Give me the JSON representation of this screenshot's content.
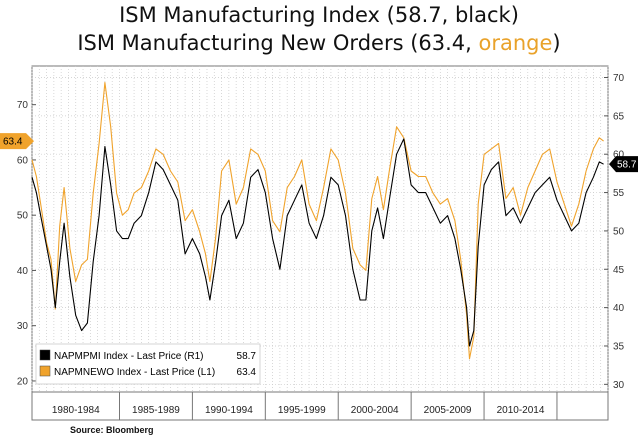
{
  "titles": {
    "line1": "ISM Manufacturing Index (58.7, black)",
    "line2_prefix": "ISM Manufacturing New Orders (63.4, ",
    "line2_highlight": "orange",
    "line2_suffix": ")"
  },
  "source": "Source:  Bloomberg",
  "chart_data": {
    "type": "line",
    "x_range": [
      1979.0,
      2018.5
    ],
    "left_axis": {
      "ylim": [
        18,
        77
      ],
      "ticks": [
        20,
        30,
        40,
        50,
        60,
        70
      ]
    },
    "right_axis": {
      "ylim": [
        29,
        71.5
      ],
      "ticks": [
        30,
        35,
        40,
        45,
        50,
        55,
        60,
        65,
        70
      ]
    },
    "x_categories": [
      "1980-1984",
      "1985-1989",
      "1990-1994",
      "1995-1999",
      "2000-2004",
      "2005-2009",
      "2010-2014"
    ],
    "category_edges": [
      1979.0,
      1985.0,
      1990.0,
      1995.0,
      2000.0,
      2005.0,
      2010.0,
      2015.0,
      2018.5
    ],
    "grid": true,
    "series": [
      {
        "name": "NAPMPMI Index - Last Price (R1)",
        "axis": "right",
        "color": "#000000",
        "last_value": "58.7",
        "x": [
          1979.0,
          1979.3,
          1979.6,
          1980.0,
          1980.3,
          1980.6,
          1980.9,
          1981.2,
          1981.6,
          1982.0,
          1982.4,
          1982.8,
          1983.2,
          1983.6,
          1984.0,
          1984.4,
          1984.8,
          1985.2,
          1985.6,
          1986.0,
          1986.5,
          1987.0,
          1987.5,
          1988.0,
          1988.5,
          1989.0,
          1989.5,
          1990.0,
          1990.5,
          1990.9,
          1991.2,
          1991.6,
          1992.0,
          1992.5,
          1993.0,
          1993.5,
          1994.0,
          1994.5,
          1995.0,
          1995.5,
          1996.0,
          1996.5,
          1997.0,
          1997.5,
          1998.0,
          1998.5,
          1999.0,
          1999.5,
          2000.0,
          2000.5,
          2001.0,
          2001.5,
          2001.9,
          2002.3,
          2002.7,
          2003.1,
          2003.5,
          2004.0,
          2004.5,
          2005.0,
          2005.5,
          2006.0,
          2006.5,
          2007.0,
          2007.5,
          2008.0,
          2008.4,
          2008.8,
          2009.0,
          2009.3,
          2009.6,
          2010.0,
          2010.5,
          2011.0,
          2011.5,
          2012.0,
          2012.5,
          2013.0,
          2013.5,
          2014.0,
          2014.5,
          2015.0,
          2015.5,
          2016.0,
          2016.5,
          2017.0,
          2017.5,
          2017.9,
          2018.2
        ],
        "values": [
          57,
          55,
          52,
          48,
          45,
          40,
          46,
          51,
          44,
          39,
          37,
          38,
          46,
          52,
          61,
          56,
          50,
          49,
          49,
          51,
          52,
          55,
          59,
          58,
          56,
          54,
          47,
          49,
          47,
          44,
          41,
          46,
          52,
          54,
          49,
          51,
          57,
          58,
          55,
          49,
          45,
          52,
          54,
          56,
          51,
          49,
          52,
          57,
          56,
          52,
          45,
          41,
          41,
          50,
          53,
          49,
          54,
          60,
          62,
          56,
          55,
          55,
          53,
          51,
          52,
          49,
          45,
          40,
          35,
          37,
          48,
          56,
          58,
          59,
          52,
          53,
          51,
          53,
          55,
          56,
          57,
          54,
          52,
          50,
          51,
          55,
          57,
          59,
          58.7
        ]
      },
      {
        "name": "NAPMNEWO Index - Last Price (L1)",
        "axis": "left",
        "color": "#f0a32c",
        "last_value": "63.4",
        "x": [
          1979.0,
          1979.3,
          1979.6,
          1980.0,
          1980.3,
          1980.6,
          1980.9,
          1981.2,
          1981.6,
          1982.0,
          1982.4,
          1982.8,
          1983.2,
          1983.6,
          1984.0,
          1984.4,
          1984.8,
          1985.2,
          1985.6,
          1986.0,
          1986.5,
          1987.0,
          1987.5,
          1988.0,
          1988.5,
          1989.0,
          1989.5,
          1990.0,
          1990.5,
          1990.9,
          1991.2,
          1991.6,
          1992.0,
          1992.5,
          1993.0,
          1993.5,
          1994.0,
          1994.5,
          1995.0,
          1995.5,
          1996.0,
          1996.5,
          1997.0,
          1997.5,
          1998.0,
          1998.5,
          1999.0,
          1999.5,
          2000.0,
          2000.5,
          2001.0,
          2001.5,
          2001.9,
          2002.3,
          2002.7,
          2003.1,
          2003.5,
          2004.0,
          2004.5,
          2005.0,
          2005.5,
          2006.0,
          2006.5,
          2007.0,
          2007.5,
          2008.0,
          2008.4,
          2008.8,
          2009.0,
          2009.3,
          2009.6,
          2010.0,
          2010.5,
          2011.0,
          2011.5,
          2012.0,
          2012.5,
          2013.0,
          2013.5,
          2014.0,
          2014.5,
          2015.0,
          2015.5,
          2016.0,
          2016.5,
          2017.0,
          2017.5,
          2017.9,
          2018.2
        ],
        "values": [
          60,
          57,
          52,
          45,
          42,
          33,
          48,
          55,
          44,
          38,
          41,
          42,
          54,
          63,
          74,
          66,
          54,
          50,
          51,
          54,
          55,
          58,
          62,
          61,
          58,
          56,
          49,
          51,
          47,
          43,
          38,
          46,
          58,
          60,
          52,
          55,
          62,
          61,
          58,
          49,
          47,
          55,
          57,
          60,
          52,
          49,
          55,
          62,
          60,
          54,
          44,
          41,
          40,
          53,
          57,
          51,
          58,
          66,
          64,
          58,
          57,
          57,
          54,
          52,
          53,
          49,
          42,
          32,
          24,
          28,
          52,
          61,
          62,
          63,
          53,
          55,
          50,
          55,
          58,
          61,
          62,
          56,
          52,
          48,
          52,
          58,
          62,
          64,
          63.4
        ]
      }
    ]
  }
}
